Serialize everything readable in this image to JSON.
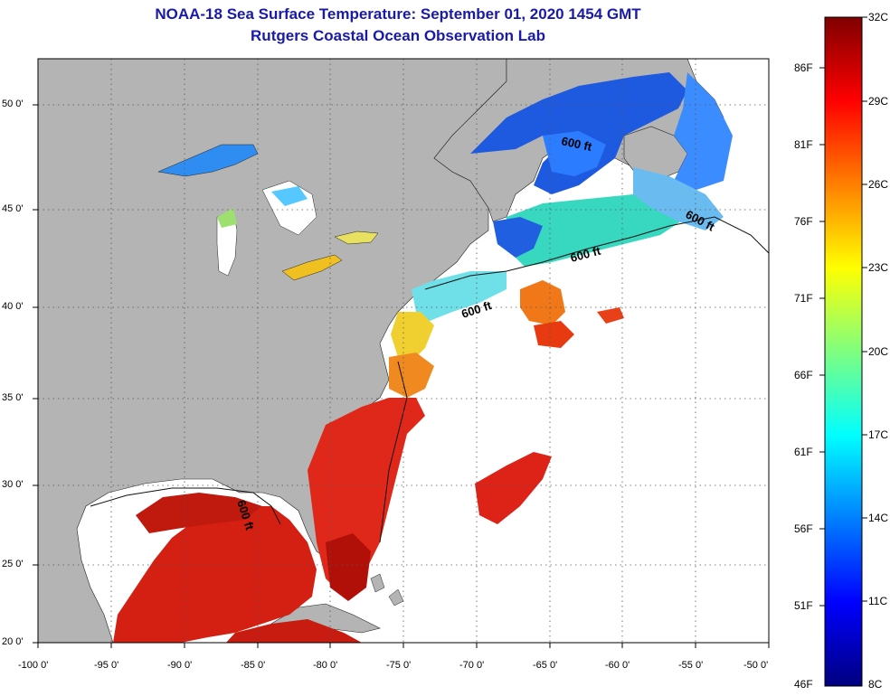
{
  "title": "NOAA-18 Sea Surface Temperature:  September 01, 2020 1454 GMT",
  "subtitle": "Rutgers Coastal Ocean Observation Lab",
  "title_color": "#1a1aa8",
  "map": {
    "lon_ticks": [
      "-100 0'",
      "-95 0'",
      "-90 0'",
      "-85 0'",
      "-80 0'",
      "-75 0'",
      "-70 0'",
      "-65 0'",
      "-60 0'",
      "-55 0'",
      "-50 0'"
    ],
    "lat_ticks": [
      "50 0'",
      "45 0'",
      "40 0'",
      "35 0'",
      "30 0'",
      "25 0'",
      "20 0'"
    ],
    "contour_labels": [
      "600 ft",
      "600 ft",
      "600 ft",
      "600 ft",
      "600 ft"
    ],
    "land_color": "#b4b4b4",
    "no_data_color": "#ffffff"
  },
  "colorbar": {
    "celsius_labels": [
      "32C",
      "29C",
      "26C",
      "23C",
      "20C",
      "17C",
      "14C",
      "11C",
      "8C"
    ],
    "fahrenheit_labels": [
      "86F",
      "81F",
      "76F",
      "71F",
      "66F",
      "61F",
      "56F",
      "51F",
      "46F"
    ],
    "colors": [
      "#00007f",
      "#0000ff",
      "#007fff",
      "#00ffff",
      "#7fff7f",
      "#ffff00",
      "#ff7f00",
      "#ff0000",
      "#7f0000"
    ]
  }
}
